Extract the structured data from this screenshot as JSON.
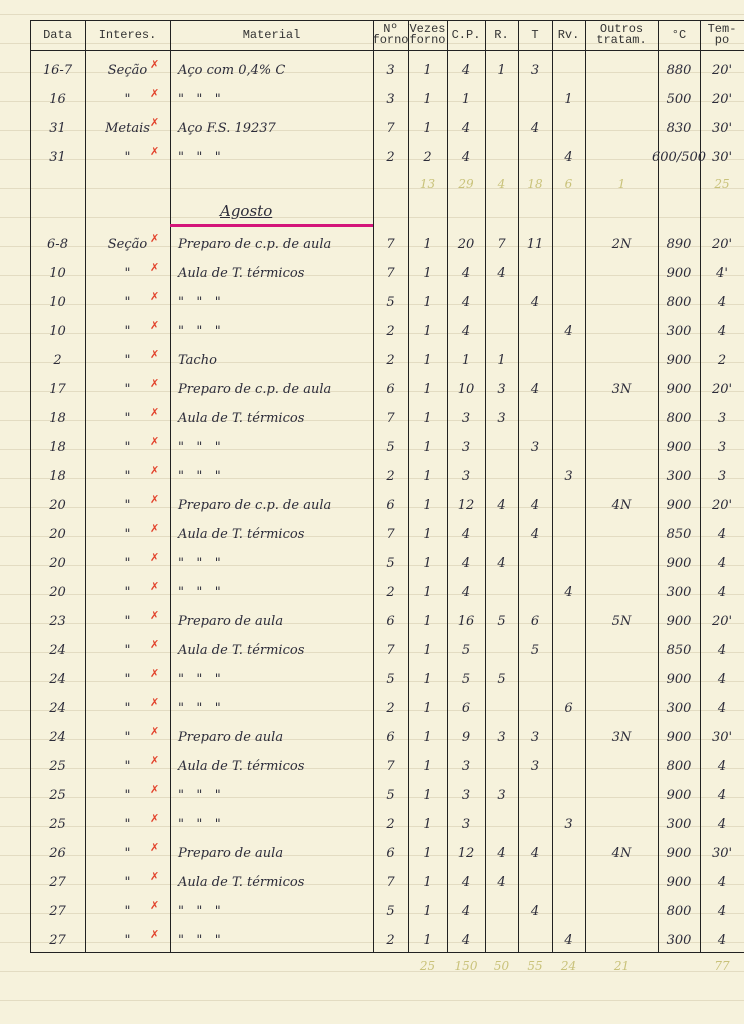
{
  "headers": [
    "Data",
    "Interes.",
    "Material",
    "Nº forno",
    "Vezes forno",
    "C.P.",
    "R.",
    "T",
    "Rv.",
    "Outros tratam.",
    "°C",
    "Tem- po"
  ],
  "colors": {
    "ink": "#2c2c3a",
    "check_red": "#e2432c",
    "totals_yellow": "#c9c27a",
    "underline_magenta": "#d4157a",
    "paper": "#f6f2dc"
  },
  "section1": [
    [
      "16-7",
      "Seção",
      "Aço com 0,4% C",
      "3",
      "1",
      "4",
      "1",
      "3",
      "",
      "",
      "880",
      "20'"
    ],
    [
      "16",
      "\"",
      "\"   \"   \"",
      "3",
      "1",
      "1",
      "",
      "",
      "1",
      "",
      "500",
      "20'"
    ],
    [
      "31",
      "Metais",
      "Aço F.S. 19237",
      "7",
      "1",
      "4",
      "",
      "4",
      "",
      "",
      "830",
      "30'"
    ],
    [
      "31",
      "\"",
      "\"   \"   \"",
      "2",
      "2",
      "4",
      "",
      "",
      "4",
      "",
      "600/500",
      "30'"
    ]
  ],
  "section1_totals": [
    "",
    "",
    "",
    "",
    "13",
    "29",
    "4",
    "18",
    "6",
    "1",
    "",
    "25"
  ],
  "month": "Agosto",
  "section2": [
    [
      "6-8",
      "Seção",
      "Preparo de c.p. de aula",
      "7",
      "1",
      "20",
      "7",
      "11",
      "",
      "2N",
      "890",
      "20'"
    ],
    [
      "10",
      "\"",
      "Aula de T. térmicos",
      "7",
      "1",
      "4",
      "4",
      "",
      "",
      "",
      "900",
      "4'"
    ],
    [
      "10",
      "\"",
      "\"   \"   \"",
      "5",
      "1",
      "4",
      "",
      "4",
      "",
      "",
      "800",
      "4"
    ],
    [
      "10",
      "\"",
      "\"   \"   \"",
      "2",
      "1",
      "4",
      "",
      "",
      "4",
      "",
      "300",
      "4"
    ],
    [
      "2",
      "\"",
      "Tacho",
      "2",
      "1",
      "1",
      "1",
      "",
      "",
      "",
      "900",
      "2"
    ],
    [
      "17",
      "\"",
      "Preparo de c.p. de aula",
      "6",
      "1",
      "10",
      "3",
      "4",
      "",
      "3N",
      "900",
      "20'"
    ],
    [
      "18",
      "\"",
      "Aula de T. térmicos",
      "7",
      "1",
      "3",
      "3",
      "",
      "",
      "",
      "800",
      "3"
    ],
    [
      "18",
      "\"",
      "\"   \"   \"",
      "5",
      "1",
      "3",
      "",
      "3",
      "",
      "",
      "900",
      "3"
    ],
    [
      "18",
      "\"",
      "\"   \"   \"",
      "2",
      "1",
      "3",
      "",
      "",
      "3",
      "",
      "300",
      "3"
    ],
    [
      "20",
      "\"",
      "Preparo de c.p. de aula",
      "6",
      "1",
      "12",
      "4",
      "4",
      "",
      "4N",
      "900",
      "20'"
    ],
    [
      "20",
      "\"",
      "Aula de T. térmicos",
      "7",
      "1",
      "4",
      "",
      "4",
      "",
      "",
      "850",
      "4"
    ],
    [
      "20",
      "\"",
      "\"   \"   \"",
      "5",
      "1",
      "4",
      "4",
      "",
      "",
      "",
      "900",
      "4"
    ],
    [
      "20",
      "\"",
      "\"   \"   \"",
      "2",
      "1",
      "4",
      "",
      "",
      "4",
      "",
      "300",
      "4"
    ],
    [
      "23",
      "\"",
      "Preparo de aula",
      "6",
      "1",
      "16",
      "5",
      "6",
      "",
      "5N",
      "900",
      "20'"
    ],
    [
      "24",
      "\"",
      "Aula de T. térmicos",
      "7",
      "1",
      "5",
      "",
      "5",
      "",
      "",
      "850",
      "4"
    ],
    [
      "24",
      "\"",
      "\"   \"   \"",
      "5",
      "1",
      "5",
      "5",
      "",
      "",
      "",
      "900",
      "4"
    ],
    [
      "24",
      "\"",
      "\"   \"   \"",
      "2",
      "1",
      "6",
      "",
      "",
      "6",
      "",
      "300",
      "4"
    ],
    [
      "24",
      "\"",
      "Preparo de aula",
      "6",
      "1",
      "9",
      "3",
      "3",
      "",
      "3N",
      "900",
      "30'"
    ],
    [
      "25",
      "\"",
      "Aula de T. térmicos",
      "7",
      "1",
      "3",
      "",
      "3",
      "",
      "",
      "800",
      "4"
    ],
    [
      "25",
      "\"",
      "\"   \"   \"",
      "5",
      "1",
      "3",
      "3",
      "",
      "",
      "",
      "900",
      "4"
    ],
    [
      "25",
      "\"",
      "\"   \"   \"",
      "2",
      "1",
      "3",
      "",
      "",
      "3",
      "",
      "300",
      "4"
    ],
    [
      "26",
      "\"",
      "Preparo de aula",
      "6",
      "1",
      "12",
      "4",
      "4",
      "",
      "4N",
      "900",
      "30'"
    ],
    [
      "27",
      "\"",
      "Aula de T. térmicos",
      "7",
      "1",
      "4",
      "4",
      "",
      "",
      "",
      "900",
      "4"
    ],
    [
      "27",
      "\"",
      "\"   \"   \"",
      "5",
      "1",
      "4",
      "",
      "4",
      "",
      "",
      "800",
      "4"
    ],
    [
      "27",
      "\"",
      "\"   \"   \"",
      "2",
      "1",
      "4",
      "",
      "",
      "4",
      "",
      "300",
      "4"
    ]
  ],
  "section2_totals": [
    "",
    "",
    "",
    "",
    "25",
    "150",
    "50",
    "55",
    "24",
    "21",
    "",
    "77"
  ]
}
